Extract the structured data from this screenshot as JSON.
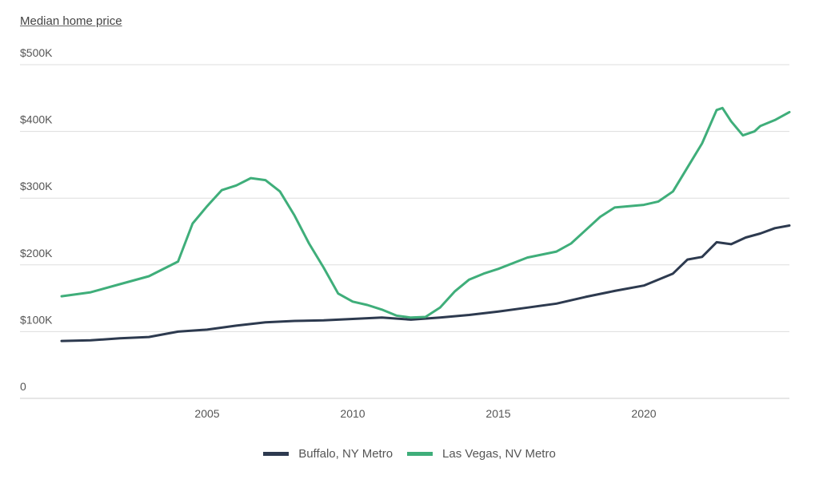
{
  "chart_data": {
    "type": "line",
    "title": "Median home price",
    "xlabel": "",
    "ylabel": "",
    "xlim": [
      2000,
      2025
    ],
    "ylim": [
      0,
      500000
    ],
    "x_ticks": [
      2005,
      2010,
      2015,
      2020
    ],
    "x_tick_labels": [
      "2005",
      "2010",
      "2015",
      "2020"
    ],
    "y_ticks": [
      0,
      100000,
      200000,
      300000,
      400000,
      500000
    ],
    "y_tick_labels": [
      "0",
      "$100K",
      "$200K",
      "$300K",
      "$400K",
      "$500K"
    ],
    "grid": "horizontal",
    "legend": "bottom",
    "series": [
      {
        "name": "Buffalo, NY Metro",
        "color": "#2d3a4f",
        "points": [
          [
            2000,
            86000
          ],
          [
            2001,
            87000
          ],
          [
            2002,
            90000
          ],
          [
            2003,
            92000
          ],
          [
            2004,
            100000
          ],
          [
            2005,
            103000
          ],
          [
            2006,
            109000
          ],
          [
            2007,
            114000
          ],
          [
            2008,
            116000
          ],
          [
            2009,
            117000
          ],
          [
            2010,
            119000
          ],
          [
            2011,
            121000
          ],
          [
            2012,
            118000
          ],
          [
            2013,
            121000
          ],
          [
            2014,
            125000
          ],
          [
            2015,
            130000
          ],
          [
            2016,
            136000
          ],
          [
            2017,
            142000
          ],
          [
            2018,
            152000
          ],
          [
            2019,
            161000
          ],
          [
            2020,
            169000
          ],
          [
            2021,
            187000
          ],
          [
            2021.5,
            208000
          ],
          [
            2022,
            212000
          ],
          [
            2022.5,
            234000
          ],
          [
            2023,
            231000
          ],
          [
            2023.5,
            241000
          ],
          [
            2024,
            247000
          ],
          [
            2024.5,
            255000
          ],
          [
            2025,
            259000
          ]
        ]
      },
      {
        "name": "Las Vegas, NV Metro",
        "color": "#3fae7a",
        "points": [
          [
            2000,
            153000
          ],
          [
            2001,
            159000
          ],
          [
            2002,
            171000
          ],
          [
            2003,
            183000
          ],
          [
            2004,
            205000
          ],
          [
            2004.5,
            262000
          ],
          [
            2005,
            288000
          ],
          [
            2005.5,
            312000
          ],
          [
            2006,
            319000
          ],
          [
            2006.5,
            330000
          ],
          [
            2007,
            327000
          ],
          [
            2007.5,
            310000
          ],
          [
            2008,
            274000
          ],
          [
            2008.5,
            232000
          ],
          [
            2009,
            196000
          ],
          [
            2009.5,
            157000
          ],
          [
            2010,
            145000
          ],
          [
            2010.5,
            140000
          ],
          [
            2011,
            133000
          ],
          [
            2011.5,
            124000
          ],
          [
            2012,
            121000
          ],
          [
            2012.5,
            122000
          ],
          [
            2013,
            136000
          ],
          [
            2013.5,
            160000
          ],
          [
            2014,
            178000
          ],
          [
            2014.5,
            187000
          ],
          [
            2015,
            194000
          ],
          [
            2016,
            211000
          ],
          [
            2017,
            220000
          ],
          [
            2017.5,
            232000
          ],
          [
            2018,
            252000
          ],
          [
            2018.5,
            272000
          ],
          [
            2019,
            286000
          ],
          [
            2019.5,
            288000
          ],
          [
            2020,
            290000
          ],
          [
            2020.5,
            295000
          ],
          [
            2021,
            310000
          ],
          [
            2021.5,
            346000
          ],
          [
            2022,
            382000
          ],
          [
            2022.5,
            432000
          ],
          [
            2022.7,
            435000
          ],
          [
            2023,
            415000
          ],
          [
            2023.4,
            394000
          ],
          [
            2023.8,
            400000
          ],
          [
            2024,
            408000
          ],
          [
            2024.5,
            417000
          ],
          [
            2025,
            429000
          ]
        ]
      }
    ]
  }
}
